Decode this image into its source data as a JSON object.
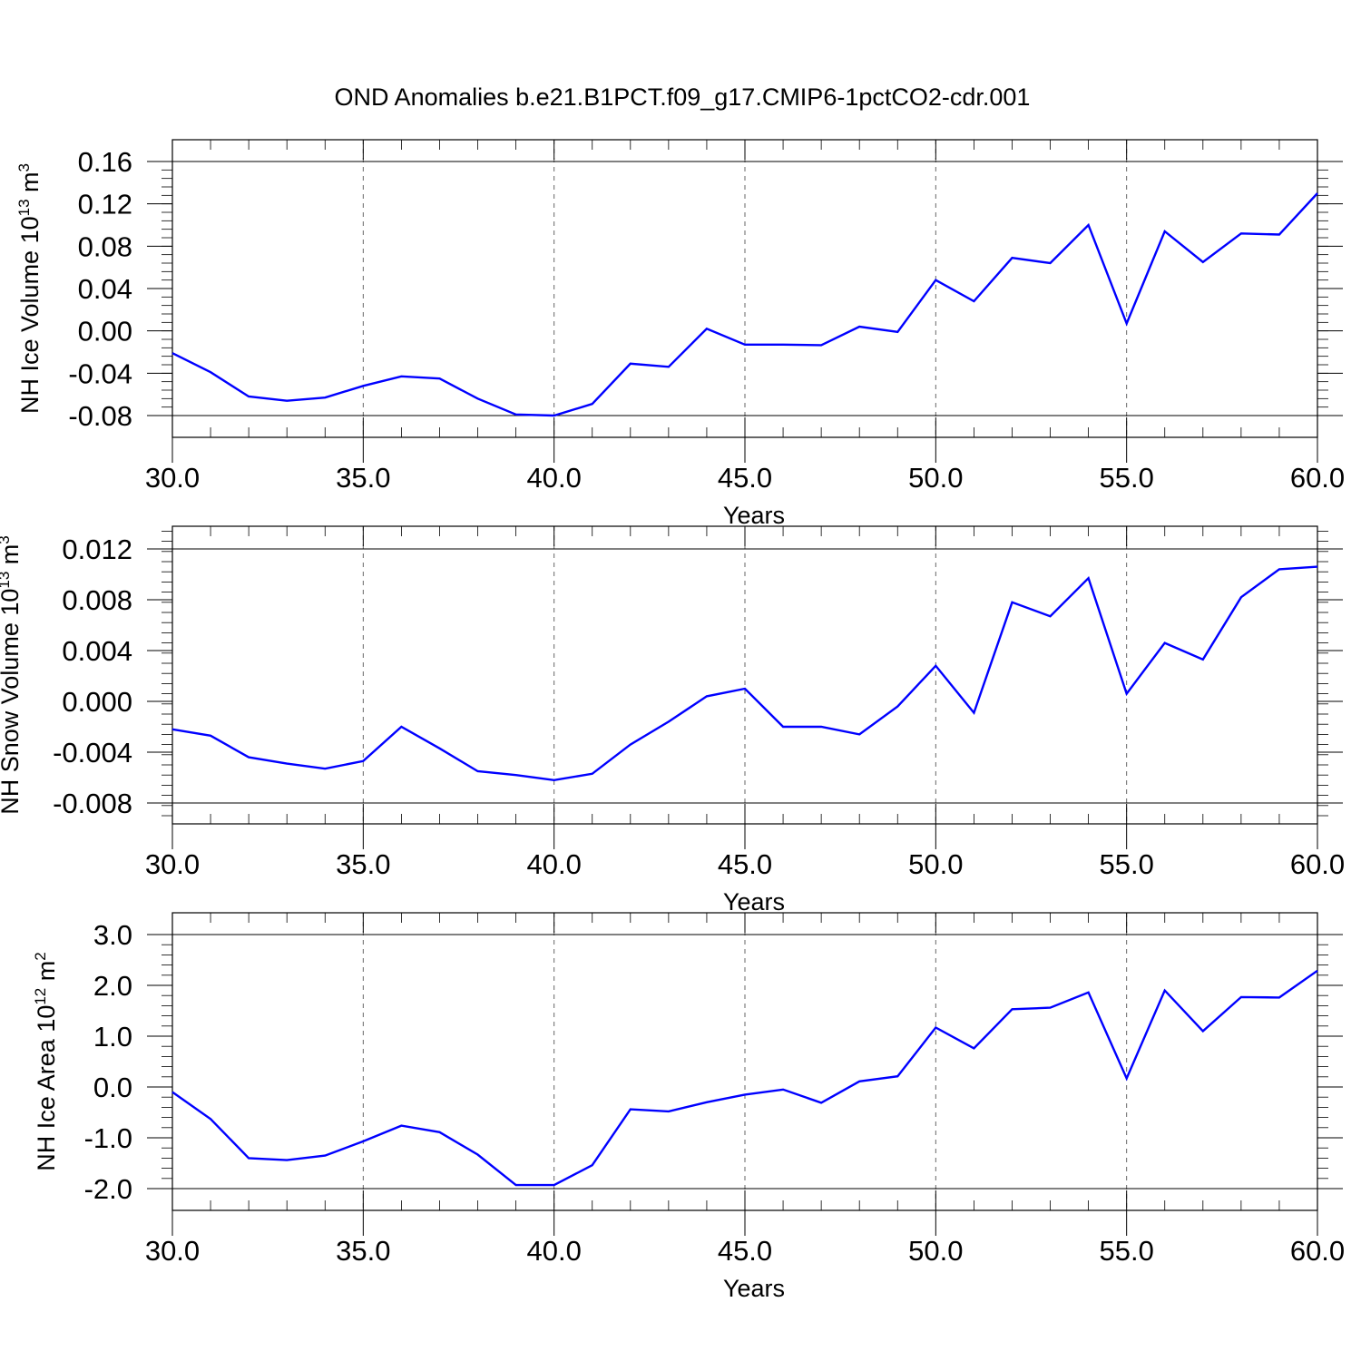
{
  "figure_title": "OND Anomalies b.e21.B1PCT.f09_g17.CMIP6-1pctCO2-cdr.001",
  "chart_data": [
    {
      "type": "line",
      "title": "",
      "xlabel": "Years",
      "ylabel": {
        "text": "NH Ice Volume 10",
        "exp": "13",
        "unit": " m",
        "unit_exp": "3"
      },
      "xlim": [
        30,
        60
      ],
      "ylim": [
        -0.08,
        0.16
      ],
      "x_ticks": [
        30,
        35,
        40,
        45,
        50,
        55,
        60
      ],
      "x_tick_labels": [
        "30.0",
        "35.0",
        "40.0",
        "45.0",
        "50.0",
        "55.0",
        "60.0"
      ],
      "y_ticks": [
        -0.08,
        -0.04,
        0.0,
        0.04,
        0.08,
        0.12,
        0.16
      ],
      "y_tick_labels": [
        "-0.08",
        "-0.04",
        "0.00",
        "0.04",
        "0.08",
        "0.12",
        "0.16"
      ],
      "vertical_dashed_grid_at": [
        35,
        40,
        45,
        50,
        55
      ],
      "line_color": "#0000ff",
      "series": [
        {
          "x": [
            30,
            31,
            32,
            33,
            34,
            35,
            36,
            37,
            38,
            39,
            40,
            41,
            42,
            43,
            44,
            45,
            46,
            47,
            48,
            49,
            50,
            51,
            52,
            53,
            54,
            55,
            56,
            57,
            58,
            59,
            60
          ],
          "values": [
            -0.021,
            -0.039,
            -0.062,
            -0.066,
            -0.063,
            -0.052,
            -0.043,
            -0.045,
            -0.064,
            -0.079,
            -0.08,
            -0.069,
            -0.031,
            -0.034,
            0.002,
            -0.013,
            -0.013,
            -0.0135,
            0.004,
            -0.001,
            0.048,
            0.028,
            0.069,
            0.064,
            0.1,
            0.007,
            0.094,
            0.065,
            0.092,
            0.091,
            0.13
          ]
        }
      ]
    },
    {
      "type": "line",
      "title": "",
      "xlabel": "Years",
      "ylabel": {
        "text": "NH Snow Volume 10",
        "exp": "13",
        "unit": " m",
        "unit_exp": "3"
      },
      "xlim": [
        30,
        60
      ],
      "ylim": [
        -0.009,
        0.0135
      ],
      "x_ticks": [
        30,
        35,
        40,
        45,
        50,
        55,
        60
      ],
      "x_tick_labels": [
        "30.0",
        "35.0",
        "40.0",
        "45.0",
        "50.0",
        "55.0",
        "60.0"
      ],
      "y_ticks": [
        -0.008,
        -0.004,
        0.0,
        0.004,
        0.008,
        0.012
      ],
      "y_tick_labels": [
        "-0.008",
        "-0.004",
        "0.000",
        "0.004",
        "0.008",
        "0.012"
      ],
      "vertical_dashed_grid_at": [
        35,
        40,
        45,
        50,
        55
      ],
      "line_color": "#0000ff",
      "series": [
        {
          "x": [
            30,
            31,
            32,
            33,
            34,
            35,
            36,
            37,
            38,
            39,
            40,
            41,
            42,
            43,
            44,
            45,
            46,
            47,
            48,
            49,
            50,
            51,
            52,
            53,
            54,
            55,
            56,
            57,
            58,
            59,
            60
          ],
          "values": [
            -0.0022,
            -0.0027,
            -0.0044,
            -0.0049,
            -0.0053,
            -0.0047,
            -0.002,
            -0.0037,
            -0.0055,
            -0.0058,
            -0.0062,
            -0.0057,
            -0.0034,
            -0.0016,
            0.0004,
            0.001,
            -0.002,
            -0.002,
            -0.0026,
            -0.0004,
            0.0028,
            -0.0009,
            0.0078,
            0.0067,
            0.0097,
            0.0006,
            0.0046,
            0.0033,
            0.0082,
            0.0104,
            0.0106
          ]
        }
      ]
    },
    {
      "type": "line",
      "title": "",
      "xlabel": "Years",
      "ylabel": {
        "text": "NH Ice Area 10",
        "exp": "12",
        "unit": " m",
        "unit_exp": "2"
      },
      "xlim": [
        30,
        60
      ],
      "ylim": [
        -2.0,
        3.0
      ],
      "x_ticks": [
        30,
        35,
        40,
        45,
        50,
        55,
        60
      ],
      "x_tick_labels": [
        "30.0",
        "35.0",
        "40.0",
        "45.0",
        "50.0",
        "55.0",
        "60.0"
      ],
      "y_ticks": [
        -2.0,
        -1.0,
        0.0,
        1.0,
        2.0,
        3.0
      ],
      "y_tick_labels": [
        "-2.0",
        "-1.0",
        "0.0",
        "1.0",
        "2.0",
        "3.0"
      ],
      "vertical_dashed_grid_at": [
        35,
        40,
        45,
        50,
        55
      ],
      "line_color": "#0000ff",
      "series": [
        {
          "x": [
            30,
            31,
            32,
            33,
            34,
            35,
            36,
            37,
            38,
            39,
            40,
            41,
            42,
            43,
            44,
            45,
            46,
            47,
            48,
            49,
            50,
            51,
            52,
            53,
            54,
            55,
            56,
            57,
            58,
            59,
            60
          ],
          "values": [
            -0.1,
            -0.63,
            -1.4,
            -1.44,
            -1.35,
            -1.07,
            -0.76,
            -0.89,
            -1.33,
            -1.93,
            -1.93,
            -1.54,
            -0.44,
            -0.48,
            -0.3,
            -0.15,
            -0.05,
            -0.31,
            0.11,
            0.21,
            1.17,
            0.76,
            1.53,
            1.56,
            1.86,
            0.17,
            1.9,
            1.1,
            1.77,
            1.76,
            2.29
          ]
        }
      ]
    }
  ]
}
